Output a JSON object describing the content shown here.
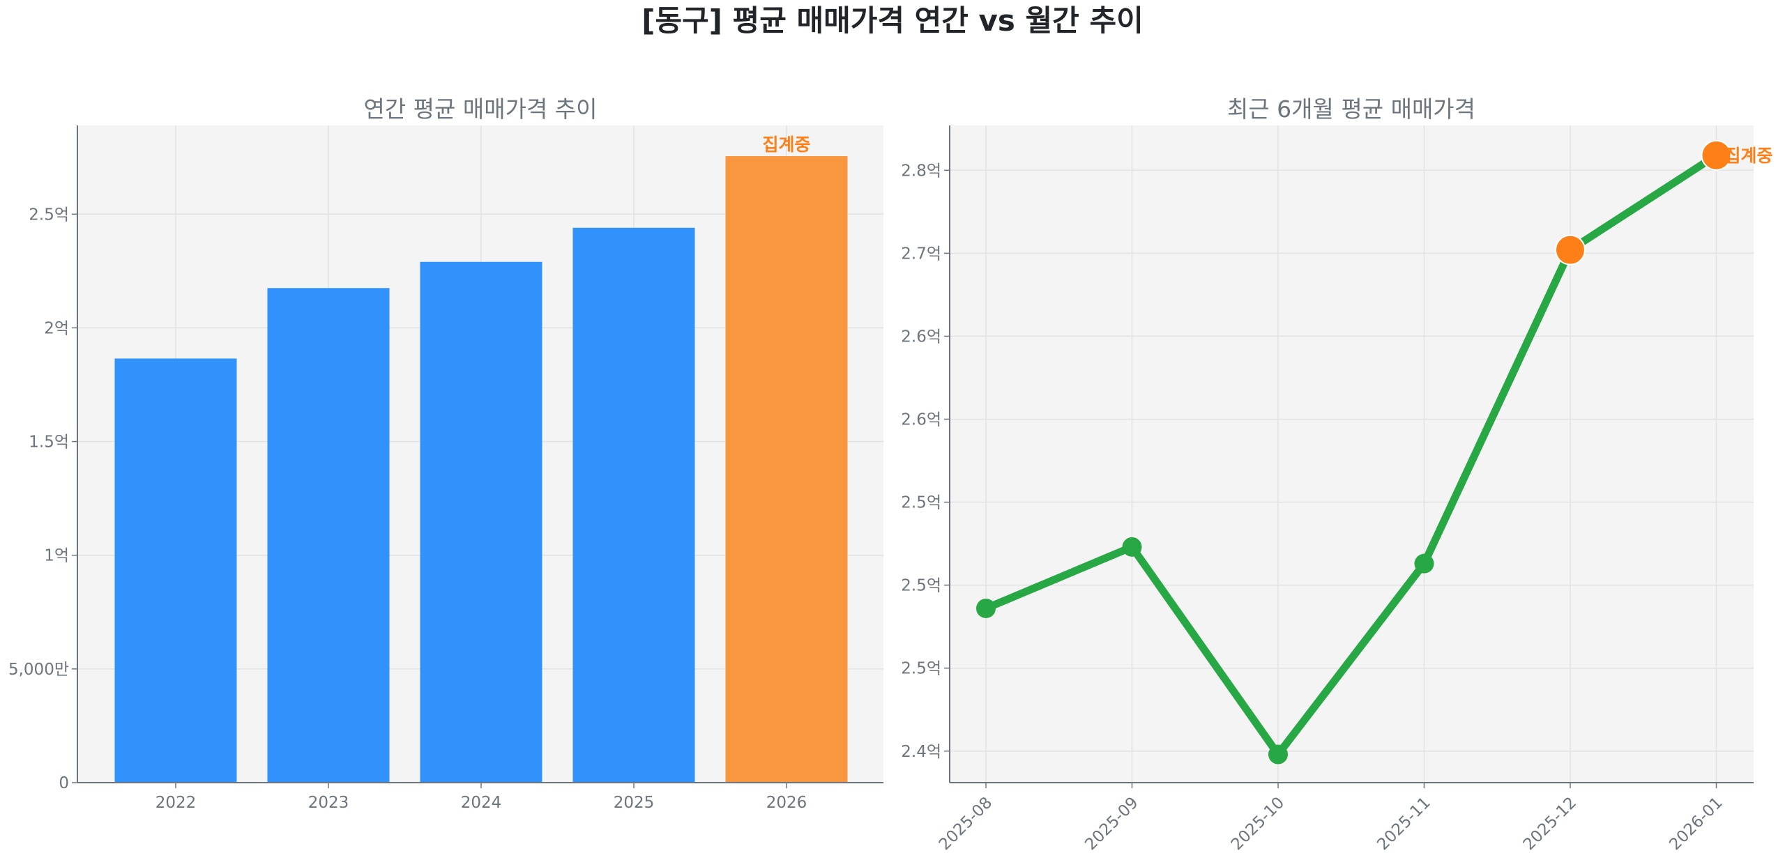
{
  "title": "[동구] 평균 매매가격 연간 vs 월간 추이",
  "colors": {
    "bar": "#3092fa",
    "bar_current": "#f99640",
    "line": "#28a745",
    "marker_current": "#fd7f17",
    "annotation": "#fd7f17",
    "axes_bg": "#f4f4f4"
  },
  "chart_data": [
    {
      "type": "bar",
      "title": "연간 평균 매매가격 추이",
      "categories": [
        "2022",
        "2023",
        "2024",
        "2025",
        "2026"
      ],
      "values": [
        1.865,
        2.175,
        2.29,
        2.44,
        2.755
      ],
      "unit": "억",
      "highlight_index": 4,
      "annotation": "집계중",
      "ylim": [
        0,
        2.89
      ],
      "yticks": [
        0,
        0.5,
        1,
        1.5,
        2,
        2.5
      ],
      "ytick_labels": [
        "0",
        "5,000만",
        "1억",
        "1.5억",
        "2억",
        "2.5억"
      ],
      "grid": true
    },
    {
      "type": "line",
      "title": "최근 6개월 평균 매매가격",
      "x": [
        "2025-08",
        "2025-09",
        "2025-10",
        "2025-11",
        "2025-12",
        "2026-01"
      ],
      "values": [
        2.486,
        2.523,
        2.398,
        2.513,
        2.702,
        2.759
      ],
      "unit": "억",
      "highlight_indices": [
        4,
        5
      ],
      "annotation": "집계중",
      "ylim": [
        2.381,
        2.777
      ],
      "yticks": [
        2.4,
        2.45,
        2.5,
        2.55,
        2.6,
        2.65,
        2.7,
        2.75
      ],
      "ytick_labels": [
        "2.4억",
        "2.5억",
        "2.5억",
        "2.5억",
        "2.6억",
        "2.6억",
        "2.7억",
        "2.8억"
      ],
      "grid": true
    }
  ]
}
